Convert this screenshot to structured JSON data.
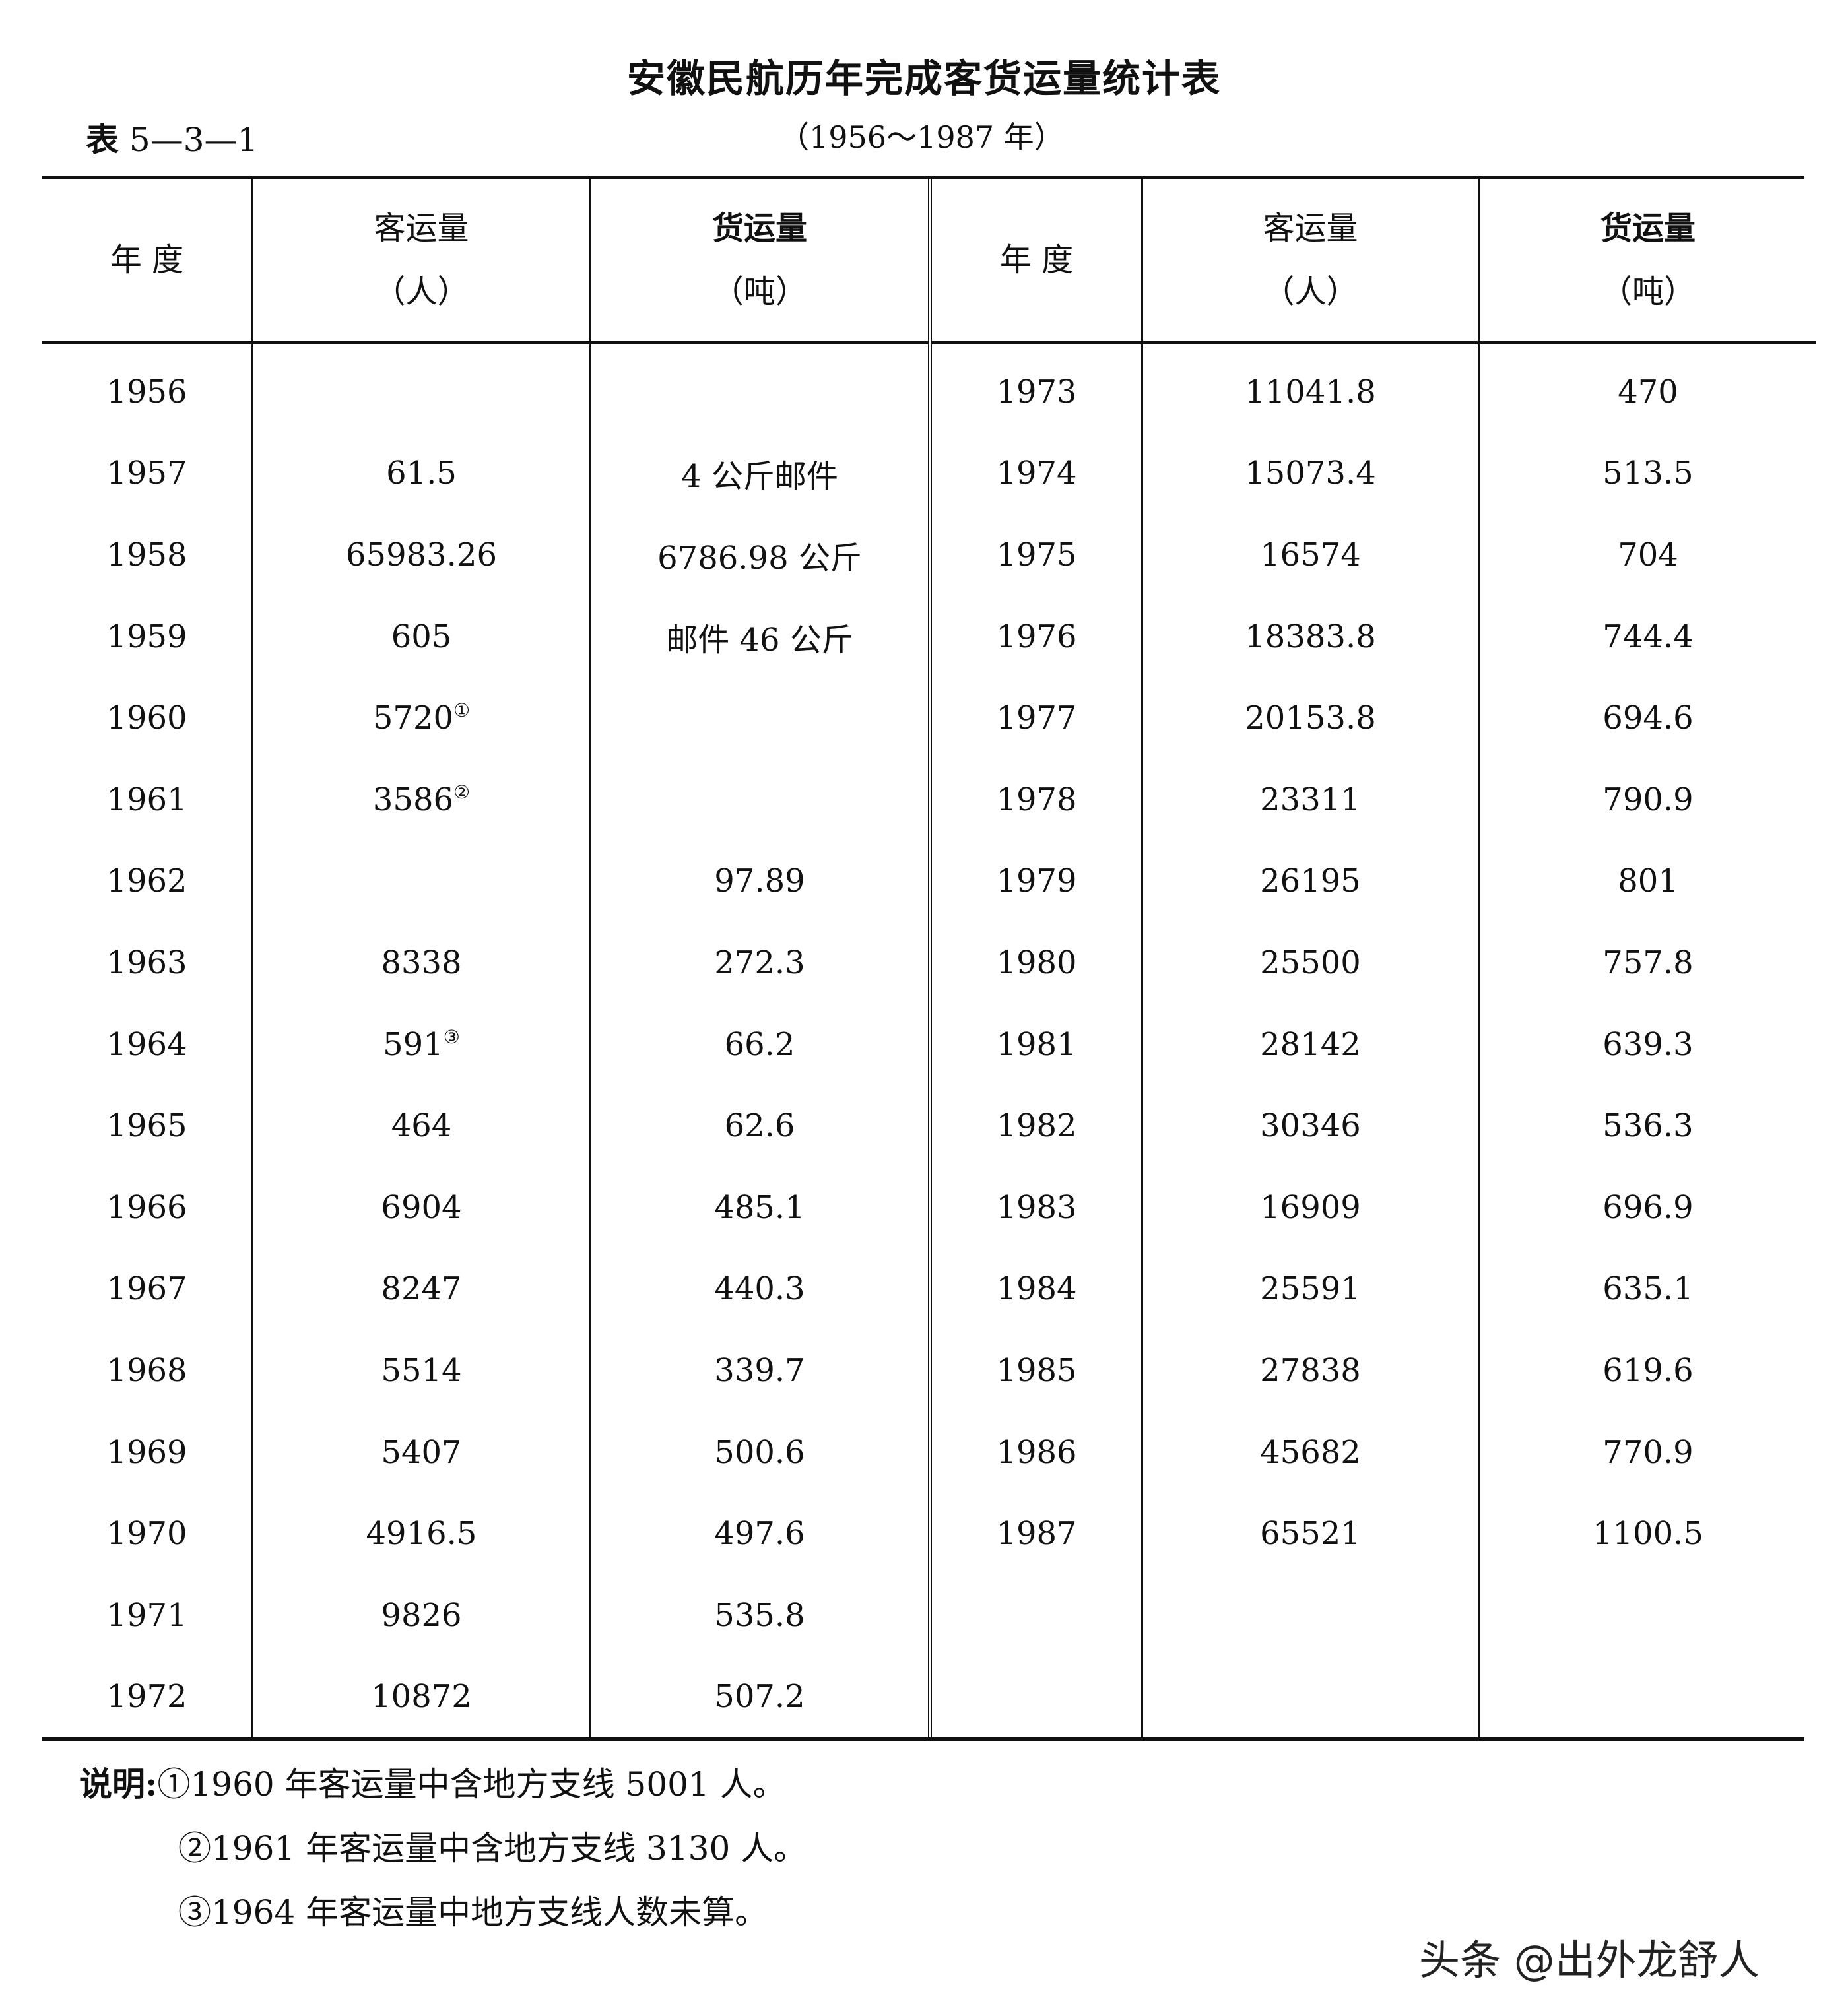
{
  "title": "安徽民航历年完成客货运量统计表",
  "table_number_prefix": "表",
  "table_number": "5—3—1",
  "year_range": "（1956～1987 年）",
  "headers": {
    "year": "年 度",
    "passenger": "客运量",
    "passenger_unit": "（人）",
    "cargo": "货运量",
    "cargo_unit": "（吨）"
  },
  "left_rows": [
    {
      "year": "1956",
      "passenger": "",
      "note": "",
      "cargo": ""
    },
    {
      "year": "1957",
      "passenger": "61.5",
      "note": "",
      "cargo": "4 公斤邮件"
    },
    {
      "year": "1958",
      "passenger": "65983.26",
      "note": "",
      "cargo": "6786.98 公斤"
    },
    {
      "year": "1959",
      "passenger": "605",
      "note": "",
      "cargo": "邮件 46 公斤"
    },
    {
      "year": "1960",
      "passenger": "5720",
      "note": "①",
      "cargo": ""
    },
    {
      "year": "1961",
      "passenger": "3586",
      "note": "②",
      "cargo": ""
    },
    {
      "year": "1962",
      "passenger": "",
      "note": "",
      "cargo": "97.89"
    },
    {
      "year": "1963",
      "passenger": "8338",
      "note": "",
      "cargo": "272.3"
    },
    {
      "year": "1964",
      "passenger": "591",
      "note": "③",
      "cargo": "66.2"
    },
    {
      "year": "1965",
      "passenger": "464",
      "note": "",
      "cargo": "62.6"
    },
    {
      "year": "1966",
      "passenger": "6904",
      "note": "",
      "cargo": "485.1"
    },
    {
      "year": "1967",
      "passenger": "8247",
      "note": "",
      "cargo": "440.3"
    },
    {
      "year": "1968",
      "passenger": "5514",
      "note": "",
      "cargo": "339.7"
    },
    {
      "year": "1969",
      "passenger": "5407",
      "note": "",
      "cargo": "500.6"
    },
    {
      "year": "1970",
      "passenger": "4916.5",
      "note": "",
      "cargo": "497.6"
    },
    {
      "year": "1971",
      "passenger": "9826",
      "note": "",
      "cargo": "535.8"
    },
    {
      "year": "1972",
      "passenger": "10872",
      "note": "",
      "cargo": "507.2"
    }
  ],
  "right_rows": [
    {
      "year": "1973",
      "passenger": "11041.8",
      "cargo": "470"
    },
    {
      "year": "1974",
      "passenger": "15073.4",
      "cargo": "513.5"
    },
    {
      "year": "1975",
      "passenger": "16574",
      "cargo": "704"
    },
    {
      "year": "1976",
      "passenger": "18383.8",
      "cargo": "744.4"
    },
    {
      "year": "1977",
      "passenger": "20153.8",
      "cargo": "694.6"
    },
    {
      "year": "1978",
      "passenger": "23311",
      "cargo": "790.9"
    },
    {
      "year": "1979",
      "passenger": "26195",
      "cargo": "801"
    },
    {
      "year": "1980",
      "passenger": "25500",
      "cargo": "757.8"
    },
    {
      "year": "1981",
      "passenger": "28142",
      "cargo": "639.3"
    },
    {
      "year": "1982",
      "passenger": "30346",
      "cargo": "536.3"
    },
    {
      "year": "1983",
      "passenger": "16909",
      "cargo": "696.9"
    },
    {
      "year": "1984",
      "passenger": "25591",
      "cargo": "635.1"
    },
    {
      "year": "1985",
      "passenger": "27838",
      "cargo": "619.6"
    },
    {
      "year": "1986",
      "passenger": "45682",
      "cargo": "770.9"
    },
    {
      "year": "1987",
      "passenger": "65521",
      "cargo": "1100.5"
    },
    {
      "year": "",
      "passenger": "",
      "cargo": ""
    },
    {
      "year": "",
      "passenger": "",
      "cargo": ""
    }
  ],
  "notes": {
    "label": "说明:",
    "items": [
      "①1960 年客运量中含地方支线 5001 人。",
      "②1961 年客运量中含地方支线 3130 人。",
      "③1964 年客运量中地方支线人数未算。"
    ]
  },
  "watermark": "头条 @出外龙舒人"
}
